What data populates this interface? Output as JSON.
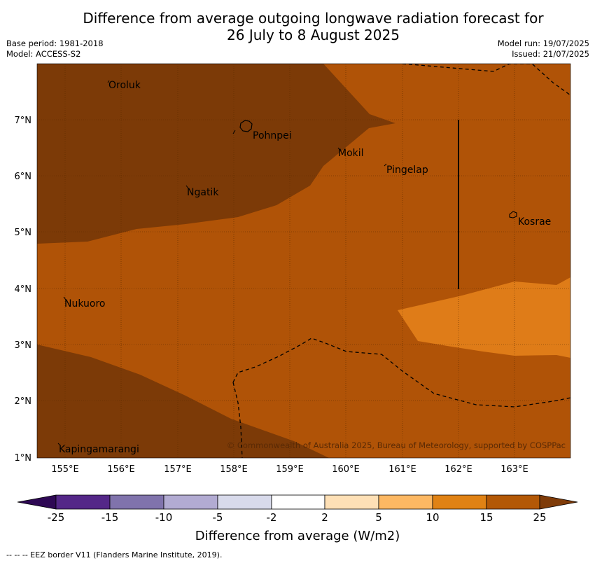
{
  "title": {
    "line1": "Difference from average outgoing longwave radiation forecast for",
    "line2": "26 July to 8 August 2025"
  },
  "meta_left": {
    "base_period": "Base period: 1981-2018",
    "model": "Model: ACCESS-S2"
  },
  "meta_right": {
    "model_run": "Model run: 19/07/2025",
    "issued": "Issued: 21/07/2025"
  },
  "map": {
    "lat_labels": [
      "7°N",
      "6°N",
      "5°N",
      "4°N",
      "3°N",
      "2°N",
      "1°N"
    ],
    "lon_labels": [
      "155°E",
      "156°E",
      "157°E",
      "158°E",
      "159°E",
      "160°E",
      "161°E",
      "162°E",
      "163°E"
    ],
    "places": [
      "Oroluk",
      "Pohnpei",
      "Mokil",
      "Pingelap",
      "Ngatik",
      "Kosrae",
      "Nukuoro",
      "Kapingamarangi"
    ],
    "copyright": "© Commonwealth of Australia 2025, Bureau of Meteorology, supported by COSPPac",
    "colors": {
      "15_to_25": "#7c3a07",
      "10_to_15": "#b05307",
      "5_to_10": "#df7c18",
      "grid": "#5a2a00"
    }
  },
  "colorbar": {
    "labels": [
      "-25",
      "-15",
      "-10",
      "-5",
      "-2",
      "2",
      "5",
      "10",
      "15",
      "25"
    ],
    "colors": [
      "#2e0854",
      "#542788",
      "#8073ac",
      "#b2abd2",
      "#d8daeb",
      "#ffffff",
      "#fee0b6",
      "#fdb863",
      "#e08214",
      "#b35806",
      "#7f3b08"
    ],
    "title": "Difference from average (W/m2)"
  },
  "footer": "--  --  -- EEZ border V11 (Flanders Marine Institute, 2019)."
}
